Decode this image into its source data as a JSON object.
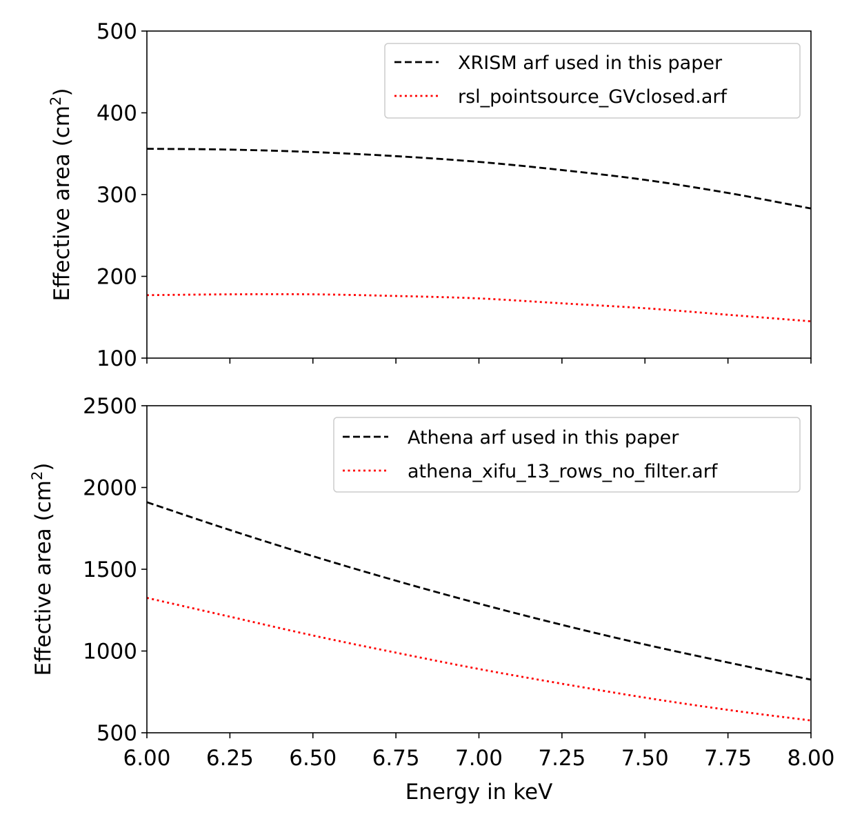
{
  "chart_data": [
    {
      "type": "line",
      "xlabel": "",
      "ylabel": "Effective area (cm",
      "ylabel_sup": "2",
      "ylabel_close": ")",
      "xlim": [
        6.0,
        8.0
      ],
      "ylim": [
        100,
        500
      ],
      "yticks": [
        100,
        200,
        300,
        400,
        500
      ],
      "yticklabels": [
        "100",
        "200",
        "300",
        "400",
        "500"
      ],
      "xticks": [
        6.0,
        6.25,
        6.5,
        6.75,
        7.0,
        7.25,
        7.5,
        7.75,
        8.0
      ],
      "show_xticklabels": false,
      "grid": false,
      "legend_position": "top-right",
      "series": [
        {
          "name": "XRISM arf used in this paper",
          "color": "#000000",
          "style": "dashed",
          "x": [
            6.0,
            6.25,
            6.5,
            6.75,
            7.0,
            7.25,
            7.5,
            7.75,
            8.0
          ],
          "y": [
            356,
            355,
            352,
            347,
            340,
            330,
            318,
            302,
            283
          ]
        },
        {
          "name": "rsl_pointsource_GVclosed.arf",
          "color": "#ff0000",
          "style": "dotted",
          "x": [
            6.0,
            6.25,
            6.5,
            6.75,
            7.0,
            7.25,
            7.5,
            7.75,
            8.0
          ],
          "y": [
            177,
            178,
            178,
            176,
            173,
            167,
            161,
            153,
            145
          ]
        }
      ]
    },
    {
      "type": "line",
      "xlabel": "Energy in keV",
      "ylabel": "Effective area (cm",
      "ylabel_sup": "2",
      "ylabel_close": ")",
      "xlim": [
        6.0,
        8.0
      ],
      "ylim": [
        500,
        2500
      ],
      "yticks": [
        500,
        1000,
        1500,
        2000,
        2500
      ],
      "yticklabels": [
        "500",
        "1000",
        "1500",
        "2000",
        "2500"
      ],
      "xticks": [
        6.0,
        6.25,
        6.5,
        6.75,
        7.0,
        7.25,
        7.5,
        7.75,
        8.0
      ],
      "xticklabels": [
        "6.00",
        "6.25",
        "6.50",
        "6.75",
        "7.00",
        "7.25",
        "7.50",
        "7.75",
        "8.00"
      ],
      "show_xticklabels": true,
      "grid": false,
      "legend_position": "top-right",
      "series": [
        {
          "name": "Athena arf used in this paper",
          "color": "#000000",
          "style": "dashed",
          "x": [
            6.0,
            6.25,
            6.5,
            6.75,
            7.0,
            7.25,
            7.5,
            7.75,
            8.0
          ],
          "y": [
            1910,
            1740,
            1580,
            1430,
            1290,
            1160,
            1040,
            930,
            825
          ]
        },
        {
          "name": "athena_xifu_13_rows_no_filter.arf",
          "color": "#ff0000",
          "style": "dotted",
          "x": [
            6.0,
            6.25,
            6.5,
            6.75,
            7.0,
            7.25,
            7.5,
            7.75,
            8.0
          ],
          "y": [
            1325,
            1210,
            1095,
            990,
            890,
            800,
            715,
            640,
            575
          ]
        }
      ]
    }
  ]
}
